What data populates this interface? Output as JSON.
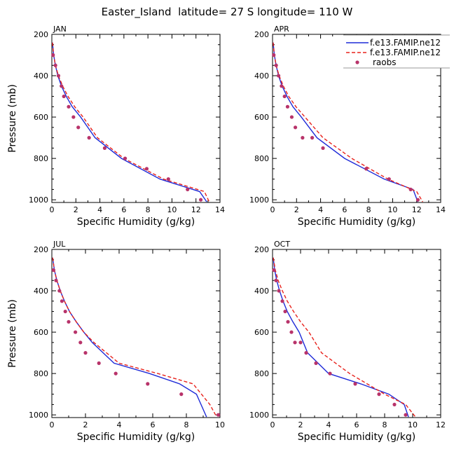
{
  "title": "Easter_Island  latitude= 27 S longitude= 110 W",
  "colors": {
    "model1": "#1f2bd8",
    "model2": "#e8221c",
    "raobs": "#b8336a"
  },
  "legend": {
    "items": [
      {
        "label": "f.e13.FAMIP.ne12",
        "style": "solid",
        "color": "#1f2bd8"
      },
      {
        "label": "f.e13.FAMIP.ne12",
        "style": "dashed",
        "color": "#e8221c"
      },
      {
        "label": "raobs",
        "style": "marker",
        "color": "#b8336a"
      }
    ]
  },
  "chart_data": [
    {
      "type": "line",
      "panel": "JAN",
      "xlabel": "Specific Humidity (g/kg)",
      "ylabel": "Pressure (mb)",
      "xlim": [
        0,
        14
      ],
      "ylim": [
        200,
        1013
      ],
      "y_inverted": true,
      "xticks": [
        0,
        2,
        4,
        6,
        8,
        10,
        12,
        14
      ],
      "yticks": [
        200,
        400,
        600,
        800,
        1000
      ],
      "series": [
        {
          "name": "f.e13.FAMIP.ne12",
          "style": "solid",
          "x": [
            0.05,
            0.15,
            0.3,
            0.5,
            0.8,
            1.2,
            1.7,
            2.4,
            3.6,
            5.8,
            9.0,
            12.3,
            12.9
          ],
          "y": [
            240,
            300,
            350,
            400,
            450,
            500,
            550,
            600,
            700,
            800,
            900,
            960,
            1010
          ]
        },
        {
          "name": "f.e13.FAMIP.ne12",
          "style": "dashed",
          "x": [
            0.05,
            0.15,
            0.3,
            0.55,
            0.9,
            1.35,
            1.9,
            2.6,
            3.8,
            6.0,
            9.3,
            12.7,
            13.1
          ],
          "y": [
            240,
            300,
            350,
            400,
            450,
            500,
            550,
            600,
            700,
            800,
            900,
            960,
            1010
          ]
        },
        {
          "name": "raobs",
          "style": "marker",
          "x": [
            0.1,
            0.3,
            0.55,
            0.8,
            1.0,
            1.4,
            1.8,
            2.2,
            3.1,
            4.4,
            6.1,
            7.9,
            9.7,
            11.3,
            12.4
          ],
          "y": [
            300,
            350,
            400,
            450,
            500,
            550,
            600,
            650,
            700,
            750,
            800,
            850,
            900,
            950,
            1000
          ]
        }
      ]
    },
    {
      "type": "line",
      "panel": "APR",
      "xlabel": "Specific Humidity (g/kg)",
      "ylabel": "",
      "xlim": [
        0,
        14
      ],
      "ylim": [
        200,
        1013
      ],
      "y_inverted": true,
      "xticks": [
        0,
        2,
        4,
        6,
        8,
        10,
        12,
        14
      ],
      "yticks": [
        200,
        400,
        600,
        800,
        1000
      ],
      "series": [
        {
          "name": "f.e13.FAMIP.ne12",
          "style": "solid",
          "x": [
            0.05,
            0.15,
            0.3,
            0.5,
            0.8,
            1.2,
            1.7,
            2.4,
            3.7,
            6.0,
            9.3,
            11.7,
            12.1
          ],
          "y": [
            240,
            300,
            350,
            400,
            450,
            500,
            550,
            600,
            700,
            800,
            900,
            950,
            1010
          ]
        },
        {
          "name": "f.e13.FAMIP.ne12",
          "style": "dashed",
          "x": [
            0.05,
            0.15,
            0.3,
            0.55,
            0.9,
            1.35,
            1.95,
            2.7,
            4.2,
            6.6,
            9.6,
            12.0,
            12.5
          ],
          "y": [
            240,
            300,
            350,
            400,
            450,
            500,
            550,
            600,
            700,
            800,
            900,
            960,
            1010
          ]
        },
        {
          "name": "raobs",
          "style": "marker",
          "x": [
            0.1,
            0.3,
            0.5,
            0.75,
            1.0,
            1.25,
            1.6,
            1.9,
            2.5,
            3.3,
            4.2,
            7.8,
            9.7,
            11.5,
            12.1
          ],
          "y": [
            300,
            350,
            400,
            450,
            500,
            550,
            600,
            650,
            700,
            700,
            750,
            850,
            900,
            950,
            1000
          ]
        }
      ]
    },
    {
      "type": "line",
      "panel": "JUL",
      "xlabel": "Specific Humidity (g/kg)",
      "ylabel": "Pressure (mb)",
      "xlim": [
        0,
        10
      ],
      "ylim": [
        200,
        1013
      ],
      "y_inverted": true,
      "xticks": [
        0,
        2,
        4,
        6,
        8,
        10
      ],
      "yticks": [
        200,
        400,
        600,
        800,
        1000
      ],
      "series": [
        {
          "name": "f.e13.FAMIP.ne12",
          "style": "solid",
          "x": [
            0.05,
            0.15,
            0.3,
            0.5,
            0.75,
            1.05,
            1.45,
            1.9,
            2.4,
            3.7,
            5.8,
            7.6,
            8.6,
            9.2
          ],
          "y": [
            240,
            300,
            350,
            400,
            450,
            500,
            550,
            600,
            650,
            750,
            800,
            850,
            900,
            1010
          ]
        },
        {
          "name": "f.e13.FAMIP.ne12",
          "style": "dashed",
          "x": [
            0.05,
            0.15,
            0.3,
            0.5,
            0.75,
            1.05,
            1.45,
            1.9,
            2.5,
            4.0,
            6.3,
            8.4,
            9.4,
            9.8
          ],
          "y": [
            240,
            300,
            350,
            400,
            450,
            500,
            550,
            600,
            650,
            750,
            800,
            850,
            950,
            1010
          ]
        },
        {
          "name": "raobs",
          "style": "marker",
          "x": [
            0.1,
            0.25,
            0.45,
            0.6,
            0.8,
            1.0,
            1.4,
            1.7,
            2.0,
            2.8,
            3.8,
            5.7,
            7.7,
            9.9
          ],
          "y": [
            300,
            350,
            400,
            450,
            500,
            550,
            600,
            650,
            700,
            750,
            800,
            850,
            900,
            1000
          ]
        }
      ]
    },
    {
      "type": "line",
      "panel": "OCT",
      "xlabel": "Specific Humidity (g/kg)",
      "ylabel": "",
      "xlim": [
        0,
        12
      ],
      "ylim": [
        200,
        1013
      ],
      "y_inverted": true,
      "xticks": [
        0,
        2,
        4,
        6,
        8,
        10,
        12
      ],
      "yticks": [
        200,
        400,
        600,
        800,
        1000
      ],
      "series": [
        {
          "name": "f.e13.FAMIP.ne12",
          "style": "solid",
          "x": [
            0.05,
            0.15,
            0.3,
            0.5,
            0.75,
            1.05,
            1.45,
            1.9,
            2.5,
            4.0,
            6.3,
            8.3,
            9.4,
            9.7
          ],
          "y": [
            240,
            300,
            350,
            400,
            450,
            500,
            550,
            600,
            700,
            800,
            850,
            900,
            950,
            1010
          ]
        },
        {
          "name": "f.e13.FAMIP.ne12",
          "style": "dashed",
          "x": [
            0.05,
            0.2,
            0.4,
            0.7,
            1.05,
            1.5,
            2.0,
            2.6,
            3.5,
            5.5,
            8.0,
            9.5,
            10.2
          ],
          "y": [
            240,
            300,
            350,
            400,
            450,
            500,
            550,
            600,
            700,
            800,
            900,
            950,
            1010
          ]
        },
        {
          "name": "raobs",
          "style": "marker",
          "x": [
            0.1,
            0.25,
            0.45,
            0.7,
            0.9,
            1.1,
            1.35,
            1.6,
            2.0,
            2.4,
            3.1,
            4.1,
            5.9,
            7.6,
            8.7,
            9.5
          ],
          "y": [
            300,
            350,
            400,
            450,
            500,
            550,
            600,
            650,
            650,
            700,
            750,
            800,
            850,
            900,
            950,
            1000
          ]
        }
      ]
    }
  ]
}
